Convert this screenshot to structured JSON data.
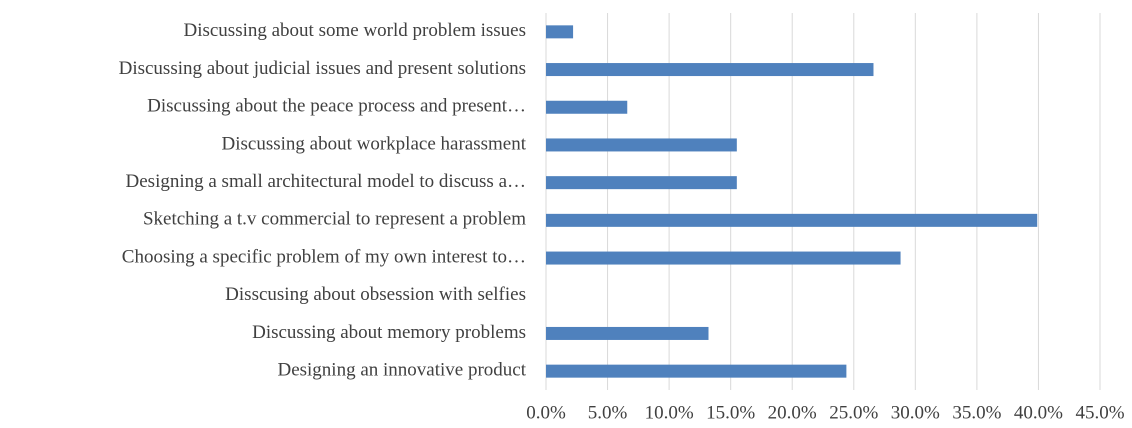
{
  "chart_data": {
    "type": "hbar",
    "categories": [
      "Discussing about  some world problem  issues",
      "Discussing about judicial issues and present solutions",
      "Discussing about the peace process and present…",
      "Discussing about workplace harassment",
      "Designing a small architectural model to discuss a…",
      "Sketching a t.v commercial to represent  a problem",
      "Choosing a specific problem of my own interest  to…",
      "Disscusing about obsession with selfies",
      "Discussing about memory  problems",
      "Designing an innovative product"
    ],
    "values": [
      2.2,
      26.6,
      6.6,
      15.5,
      15.5,
      39.9,
      28.8,
      0,
      13.2,
      24.4
    ],
    "color": "#4f81bd",
    "xlim": [
      0,
      45
    ],
    "xticks": [
      {
        "value": 0,
        "label": "0.0%"
      },
      {
        "value": 5,
        "label": "5.0%"
      },
      {
        "value": 10,
        "label": "10.0%"
      },
      {
        "value": 15,
        "label": "15.0%"
      },
      {
        "value": 20,
        "label": "20.0%"
      },
      {
        "value": 25,
        "label": "25.0%"
      },
      {
        "value": 30,
        "label": "30.0%"
      },
      {
        "value": 35,
        "label": "35.0%"
      },
      {
        "value": 40,
        "label": "40.0%"
      },
      {
        "value": 45,
        "label": "45.0%"
      }
    ],
    "grid": true
  }
}
